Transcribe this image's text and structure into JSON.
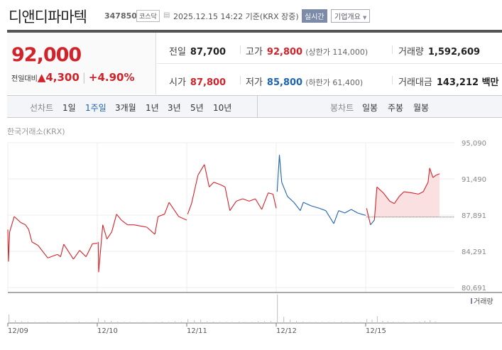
{
  "header": {
    "title": "디앤디파마텍",
    "code": "347850",
    "market": "코스닥",
    "timestamp": "2025.12.15 14:22 기준(KRX 장중)",
    "realtime_badge": "실시간",
    "overview_button": "기업개요",
    "calendar_icon": "calendar-icon"
  },
  "quote": {
    "price": "92,000",
    "change_label": "전일대비",
    "change_arrow": "▲",
    "change": "4,300",
    "change_pct": "+4.90%",
    "prev_close_label": "전일",
    "prev_close": "87,700",
    "open_label": "시가",
    "open": "87,800",
    "high_label": "고가",
    "high": "92,800",
    "upper_limit": "(상한가 114,000)",
    "low_label": "저가",
    "low": "85,800",
    "lower_limit": "(하한가 61,400)",
    "volume_label": "거래량",
    "volume": "1,592,609",
    "value_label": "거래대금",
    "value": "143,212 백만"
  },
  "tabs": {
    "line_label": "선차트",
    "line": [
      "1일",
      "1주일",
      "3개월",
      "1년",
      "3년",
      "5년",
      "10년"
    ],
    "active": "1주일",
    "candle_label": "봉차트",
    "candle": [
      "일봉",
      "주봉",
      "월봉"
    ]
  },
  "colors": {
    "up": "#d2232a",
    "down": "#1e63b0",
    "fill": "#fbe0e1"
  },
  "chart_data": {
    "type": "line",
    "source_label": "한국거래소(KRX)",
    "volume_legend": "거래량",
    "y_ticks": [
      "95,090",
      "91,490",
      "87,891",
      "84,291",
      "80,691"
    ],
    "ylim": [
      80691,
      95090
    ],
    "x_ticks": [
      "12/09",
      "12/10",
      "12/11",
      "12/12",
      "12/15"
    ],
    "prev_close": 87700,
    "session": [
      "09:00",
      "15:30"
    ],
    "days": [
      {
        "date": "12/09",
        "trend": "up",
        "points": [
          [
            "09:00",
            86455
          ],
          [
            "09:03",
            83279
          ],
          [
            "09:08",
            86218
          ],
          [
            "09:28",
            87748
          ],
          [
            "09:56",
            87160
          ],
          [
            "10:17",
            86925
          ],
          [
            "10:31",
            86455
          ],
          [
            "10:45",
            85227
          ],
          [
            "11:12",
            84874
          ],
          [
            "11:54",
            83631
          ],
          [
            "12:36",
            83984
          ],
          [
            "12:50",
            83750
          ],
          [
            "13:04",
            84994
          ],
          [
            "13:46",
            83512
          ],
          [
            "14:13",
            84383
          ],
          [
            "14:41",
            83750
          ],
          [
            "15:09",
            85043
          ],
          [
            "15:30",
            85090
          ]
        ]
      },
      {
        "date": "12/10",
        "trend": "up",
        "points": [
          [
            "09:04",
            85227
          ],
          [
            "09:06",
            82220
          ],
          [
            "09:24",
            86925
          ],
          [
            "09:42",
            85509
          ],
          [
            "10:03",
            86218
          ],
          [
            "10:24",
            87982
          ],
          [
            "10:45",
            87395
          ],
          [
            "11:12",
            86925
          ],
          [
            "11:40",
            86925
          ],
          [
            "12:08",
            86808
          ],
          [
            "12:36",
            86690
          ],
          [
            "13:11",
            85980
          ],
          [
            "13:25",
            87748
          ],
          [
            "13:53",
            87982
          ],
          [
            "14:13",
            89160
          ],
          [
            "14:34",
            88454
          ],
          [
            "14:55",
            87748
          ],
          [
            "15:30",
            87395
          ]
        ]
      },
      {
        "date": "12/11",
        "trend": "up",
        "points": [
          [
            "09:04",
            87982
          ],
          [
            "09:21",
            89040
          ],
          [
            "09:35",
            90452
          ],
          [
            "09:49",
            91864
          ],
          [
            "10:17",
            92923
          ],
          [
            "10:38",
            90687
          ],
          [
            "10:58",
            91160
          ],
          [
            "11:26",
            90923
          ],
          [
            "11:47",
            90687
          ],
          [
            "12:08",
            88337
          ],
          [
            "12:36",
            89277
          ],
          [
            "13:04",
            89512
          ],
          [
            "13:32",
            89277
          ],
          [
            "13:59",
            89512
          ],
          [
            "14:27",
            88454
          ],
          [
            "14:55",
            90099
          ],
          [
            "15:16",
            89982
          ],
          [
            "15:30",
            88572
          ]
        ]
      },
      {
        "date": "12/12",
        "trend": "down",
        "points": [
          [
            "09:04",
            90217
          ],
          [
            "09:14",
            93868
          ],
          [
            "09:24",
            91160
          ],
          [
            "09:49",
            89748
          ],
          [
            "10:17",
            89160
          ],
          [
            "10:45",
            88337
          ],
          [
            "10:58",
            89160
          ],
          [
            "11:33",
            88808
          ],
          [
            "12:08",
            88572
          ],
          [
            "12:36",
            88337
          ],
          [
            "13:11",
            87042
          ],
          [
            "13:32",
            88337
          ],
          [
            "13:59",
            88100
          ],
          [
            "14:27",
            88454
          ],
          [
            "14:55",
            88100
          ],
          [
            "15:30",
            87864
          ]
        ]
      },
      {
        "date": "12/15",
        "trend": "vs_prev_close",
        "points": [
          [
            "09:04",
            88572
          ],
          [
            "09:21",
            86925
          ],
          [
            "09:38",
            87395
          ],
          [
            "09:49",
            90687
          ],
          [
            "10:17",
            90099
          ],
          [
            "10:45",
            89277
          ],
          [
            "11:05",
            89040
          ],
          [
            "11:26",
            89748
          ],
          [
            "11:47",
            90217
          ],
          [
            "12:22",
            90099
          ],
          [
            "12:50",
            89982
          ],
          [
            "13:11",
            90217
          ],
          [
            "13:32",
            91160
          ],
          [
            "13:39",
            92570
          ],
          [
            "13:53",
            91628
          ],
          [
            "14:07",
            91864
          ],
          [
            "14:22",
            92000
          ]
        ]
      }
    ],
    "volume_relative": [
      [
        30,
        10,
        6,
        5,
        4,
        3,
        4,
        3,
        3,
        4,
        3,
        5,
        3,
        4
      ],
      [
        18,
        10,
        8,
        5,
        4,
        4,
        3,
        4,
        3,
        4,
        5,
        4,
        6,
        5
      ],
      [
        14,
        10,
        12,
        6,
        5,
        4,
        4,
        4,
        5,
        4,
        4,
        6,
        6,
        7
      ],
      [
        100,
        22,
        12,
        7,
        5,
        4,
        4,
        4,
        4,
        4,
        5,
        4,
        4,
        4
      ],
      [
        14,
        12,
        24,
        8,
        6,
        5,
        4,
        4,
        3,
        4,
        5,
        8,
        10,
        6
      ]
    ]
  }
}
